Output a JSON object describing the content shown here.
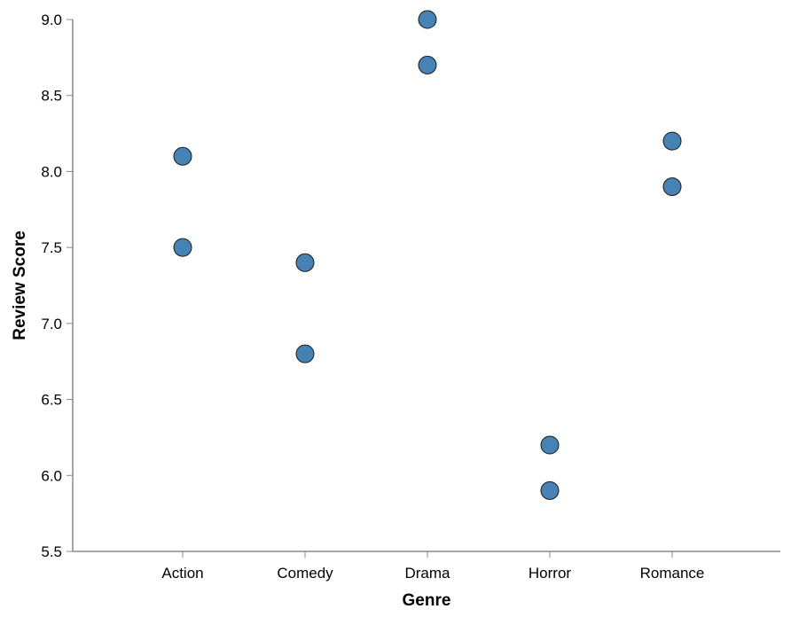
{
  "chart_data": {
    "type": "scatter",
    "title": "",
    "xlabel": "Genre",
    "ylabel": "Review Score",
    "categories": [
      "Action",
      "Comedy",
      "Drama",
      "Horror",
      "Romance"
    ],
    "ylim": [
      5.5,
      9.0
    ],
    "yticks": [
      "5.5",
      "6.0",
      "6.5",
      "7.0",
      "7.5",
      "8.0",
      "8.5",
      "9.0"
    ],
    "grid": false,
    "legend": "none",
    "series": [
      {
        "name": "Review Score",
        "color": "#4682b4",
        "points": [
          {
            "x": "Action",
            "y": 8.1
          },
          {
            "x": "Action",
            "y": 7.5
          },
          {
            "x": "Comedy",
            "y": 7.4
          },
          {
            "x": "Comedy",
            "y": 6.8
          },
          {
            "x": "Drama",
            "y": 9.0
          },
          {
            "x": "Drama",
            "y": 8.7
          },
          {
            "x": "Horror",
            "y": 6.2
          },
          {
            "x": "Horror",
            "y": 5.9
          },
          {
            "x": "Romance",
            "y": 8.2
          },
          {
            "x": "Romance",
            "y": 7.9
          }
        ]
      }
    ]
  }
}
